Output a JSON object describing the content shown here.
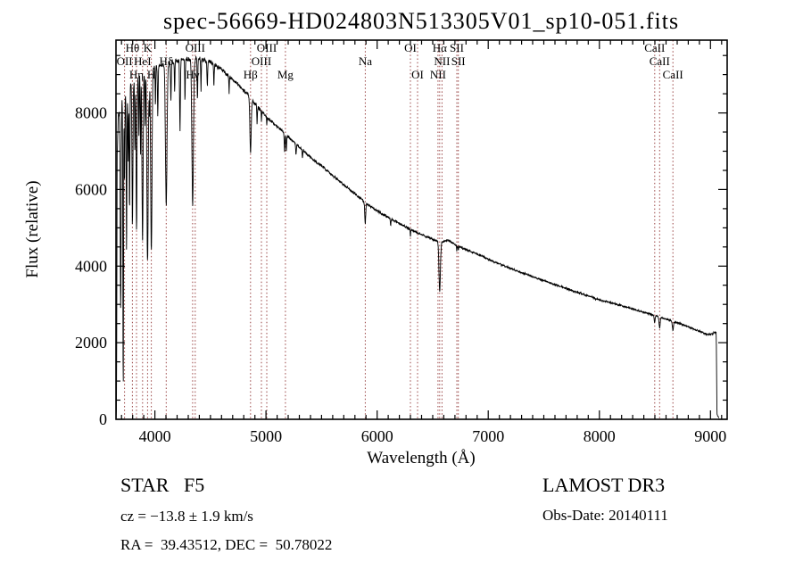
{
  "chart_data": {
    "type": "line",
    "title": "spec-56669-HD024803N513305V01_sp10-051.fits",
    "xlabel": "Wavelength (Å)",
    "ylabel": "Flux (relative)",
    "xlim": [
      3650,
      9150
    ],
    "ylim": [
      0,
      9900
    ],
    "x_ticks": [
      4000,
      5000,
      6000,
      7000,
      8000,
      9000
    ],
    "y_ticks": [
      0,
      2000,
      4000,
      6000,
      8000
    ],
    "x_minor_step": 100,
    "y_minor_step": 500,
    "grid": false,
    "line_color": "#000000",
    "marker_line_color": "#994444",
    "continuum_columns": [
      "wavelength_A",
      "flux"
    ],
    "continuum": [
      [
        3655,
        150
      ],
      [
        3660,
        6800
      ],
      [
        3670,
        7900
      ],
      [
        3685,
        8150
      ],
      [
        3700,
        8300
      ],
      [
        3720,
        8450
      ],
      [
        3740,
        8550
      ],
      [
        3760,
        8650
      ],
      [
        3780,
        8700
      ],
      [
        3800,
        8750
      ],
      [
        3830,
        8850
      ],
      [
        3860,
        8950
      ],
      [
        3900,
        9050
      ],
      [
        3950,
        9120
      ],
      [
        4000,
        9180
      ],
      [
        4060,
        9250
      ],
      [
        4120,
        9300
      ],
      [
        4200,
        9360
      ],
      [
        4280,
        9400
      ],
      [
        4360,
        9410
      ],
      [
        4440,
        9390
      ],
      [
        4520,
        9290
      ],
      [
        4600,
        9130
      ],
      [
        4680,
        8930
      ],
      [
        4760,
        8700
      ],
      [
        4840,
        8480
      ],
      [
        4900,
        8250
      ],
      [
        4960,
        8050
      ],
      [
        5020,
        7850
      ],
      [
        5080,
        7700
      ],
      [
        5140,
        7550
      ],
      [
        5200,
        7380
      ],
      [
        5280,
        7160
      ],
      [
        5360,
        6950
      ],
      [
        5440,
        6750
      ],
      [
        5520,
        6570
      ],
      [
        5600,
        6370
      ],
      [
        5680,
        6180
      ],
      [
        5760,
        5980
      ],
      [
        5840,
        5790
      ],
      [
        5900,
        5650
      ],
      [
        5960,
        5520
      ],
      [
        6020,
        5400
      ],
      [
        6100,
        5280
      ],
      [
        6180,
        5150
      ],
      [
        6260,
        5020
      ],
      [
        6340,
        4900
      ],
      [
        6420,
        4800
      ],
      [
        6500,
        4700
      ],
      [
        6580,
        4620
      ],
      [
        6640,
        4680
      ],
      [
        6700,
        4560
      ],
      [
        6760,
        4480
      ],
      [
        6840,
        4390
      ],
      [
        6920,
        4290
      ],
      [
        7000,
        4180
      ],
      [
        7080,
        4080
      ],
      [
        7160,
        3990
      ],
      [
        7240,
        3900
      ],
      [
        7320,
        3810
      ],
      [
        7400,
        3720
      ],
      [
        7480,
        3640
      ],
      [
        7560,
        3560
      ],
      [
        7640,
        3480
      ],
      [
        7720,
        3400
      ],
      [
        7800,
        3320
      ],
      [
        7880,
        3240
      ],
      [
        7960,
        3160
      ],
      [
        8040,
        3090
      ],
      [
        8120,
        3030
      ],
      [
        8200,
        2970
      ],
      [
        8280,
        2900
      ],
      [
        8360,
        2830
      ],
      [
        8440,
        2760
      ],
      [
        8520,
        2690
      ],
      [
        8600,
        2620
      ],
      [
        8680,
        2540
      ],
      [
        8760,
        2460
      ],
      [
        8840,
        2370
      ],
      [
        8920,
        2280
      ],
      [
        8980,
        2210
      ],
      [
        9020,
        2230
      ],
      [
        9045,
        2290
      ],
      [
        9052,
        2270
      ],
      [
        9058,
        120
      ],
      [
        9070,
        60
      ]
    ],
    "absorption_lines_columns": [
      "wavelength_A",
      "min_flux",
      "sigma_A"
    ],
    "absorption_lines": [
      [
        3692,
        2900,
        4
      ],
      [
        3715,
        800,
        3
      ],
      [
        3727,
        6200,
        3
      ],
      [
        3745,
        4300,
        3
      ],
      [
        3760,
        6700,
        3
      ],
      [
        3772,
        5400,
        3
      ],
      [
        3798,
        5100,
        4
      ],
      [
        3820,
        6900,
        2.5
      ],
      [
        3835,
        4900,
        4
      ],
      [
        3856,
        7300,
        2.5
      ],
      [
        3871,
        6800,
        2.5
      ],
      [
        3889,
        4600,
        5
      ],
      [
        3912,
        7600,
        2.5
      ],
      [
        3934,
        4100,
        6
      ],
      [
        3950,
        7800,
        2
      ],
      [
        3968,
        4400,
        6
      ],
      [
        4005,
        8200,
        2.5
      ],
      [
        4026,
        7900,
        3
      ],
      [
        4102,
        5600,
        7
      ],
      [
        4144,
        8300,
        3
      ],
      [
        4178,
        8500,
        2.5
      ],
      [
        4226,
        7500,
        3.5
      ],
      [
        4271,
        8300,
        2.5
      ],
      [
        4340,
        5600,
        7
      ],
      [
        4383,
        8400,
        3
      ],
      [
        4415,
        8600,
        2.5
      ],
      [
        4472,
        8700,
        3
      ],
      [
        4531,
        8700,
        2.5
      ],
      [
        4668,
        8500,
        2.5
      ],
      [
        4861,
        6950,
        6
      ],
      [
        4920,
        7700,
        2.5
      ],
      [
        4959,
        7800,
        2
      ],
      [
        5007,
        7700,
        2
      ],
      [
        5167,
        7000,
        3
      ],
      [
        5183,
        7000,
        3
      ],
      [
        5270,
        6900,
        3
      ],
      [
        5328,
        6800,
        2.5
      ],
      [
        5893,
        5100,
        4.5
      ],
      [
        6122,
        5050,
        2.5
      ],
      [
        6300,
        4750,
        2
      ],
      [
        6563,
        3350,
        6.5
      ],
      [
        6717,
        4380,
        2
      ],
      [
        6731,
        4400,
        2
      ],
      [
        8498,
        2520,
        4
      ],
      [
        8542,
        2380,
        5
      ],
      [
        8662,
        2330,
        5
      ]
    ],
    "noise": {
      "seed": 7,
      "step": 2.2,
      "amplitude": [
        [
          3650,
          140
        ],
        [
          3800,
          120
        ],
        [
          4000,
          95
        ],
        [
          4500,
          75
        ],
        [
          5000,
          55
        ],
        [
          5500,
          48
        ],
        [
          6000,
          42
        ],
        [
          6500,
          38
        ],
        [
          7000,
          34
        ],
        [
          8000,
          32
        ],
        [
          9100,
          30
        ]
      ]
    },
    "spectral_markers": [
      {
        "label": "Hθ",
        "wl": 3798,
        "row": 1
      },
      {
        "label": "K",
        "wl": 3934,
        "row": 1
      },
      {
        "label": "OIII",
        "wl": 4363,
        "row": 1
      },
      {
        "label": "OIII",
        "wl": 5007,
        "row": 1
      },
      {
        "label": "OI",
        "wl": 6300,
        "row": 1
      },
      {
        "label": "Hα",
        "wl": 6563,
        "row": 1
      },
      {
        "label": "SII",
        "wl": 6717,
        "row": 1
      },
      {
        "label": "CaII",
        "wl": 8498,
        "row": 1
      },
      {
        "label": "OII",
        "wl": 3727,
        "row": 2
      },
      {
        "label": "HeI",
        "wl": 3889,
        "row": 2
      },
      {
        "label": "Hδ",
        "wl": 4102,
        "row": 2
      },
      {
        "label": "OIII",
        "wl": 4959,
        "row": 2
      },
      {
        "label": "Na",
        "wl": 5893,
        "row": 2
      },
      {
        "label": "NII",
        "wl": 6584,
        "row": 2
      },
      {
        "label": "SII",
        "wl": 6731,
        "row": 2
      },
      {
        "label": "CaII",
        "wl": 8542,
        "row": 2
      },
      {
        "label": "Hη",
        "wl": 3835,
        "row": 3
      },
      {
        "label": "H",
        "wl": 3968,
        "row": 3
      },
      {
        "label": "Hγ",
        "wl": 4340,
        "row": 3
      },
      {
        "label": "Hβ",
        "wl": 4861,
        "row": 3
      },
      {
        "label": "Mg",
        "wl": 5175,
        "row": 3
      },
      {
        "label": "OI",
        "wl": 6364,
        "row": 3
      },
      {
        "label": "NII",
        "wl": 6548,
        "row": 3
      },
      {
        "label": "CaII",
        "wl": 8662,
        "row": 3
      }
    ]
  },
  "annotations": {
    "class_label": "STAR   F5",
    "survey": "LAMOST DR3",
    "cz": "cz = −13.8 ± 1.9 km/s",
    "obs_date": "Obs-Date: 20140111",
    "coords": "RA =  39.43512, DEC =  50.78022"
  }
}
